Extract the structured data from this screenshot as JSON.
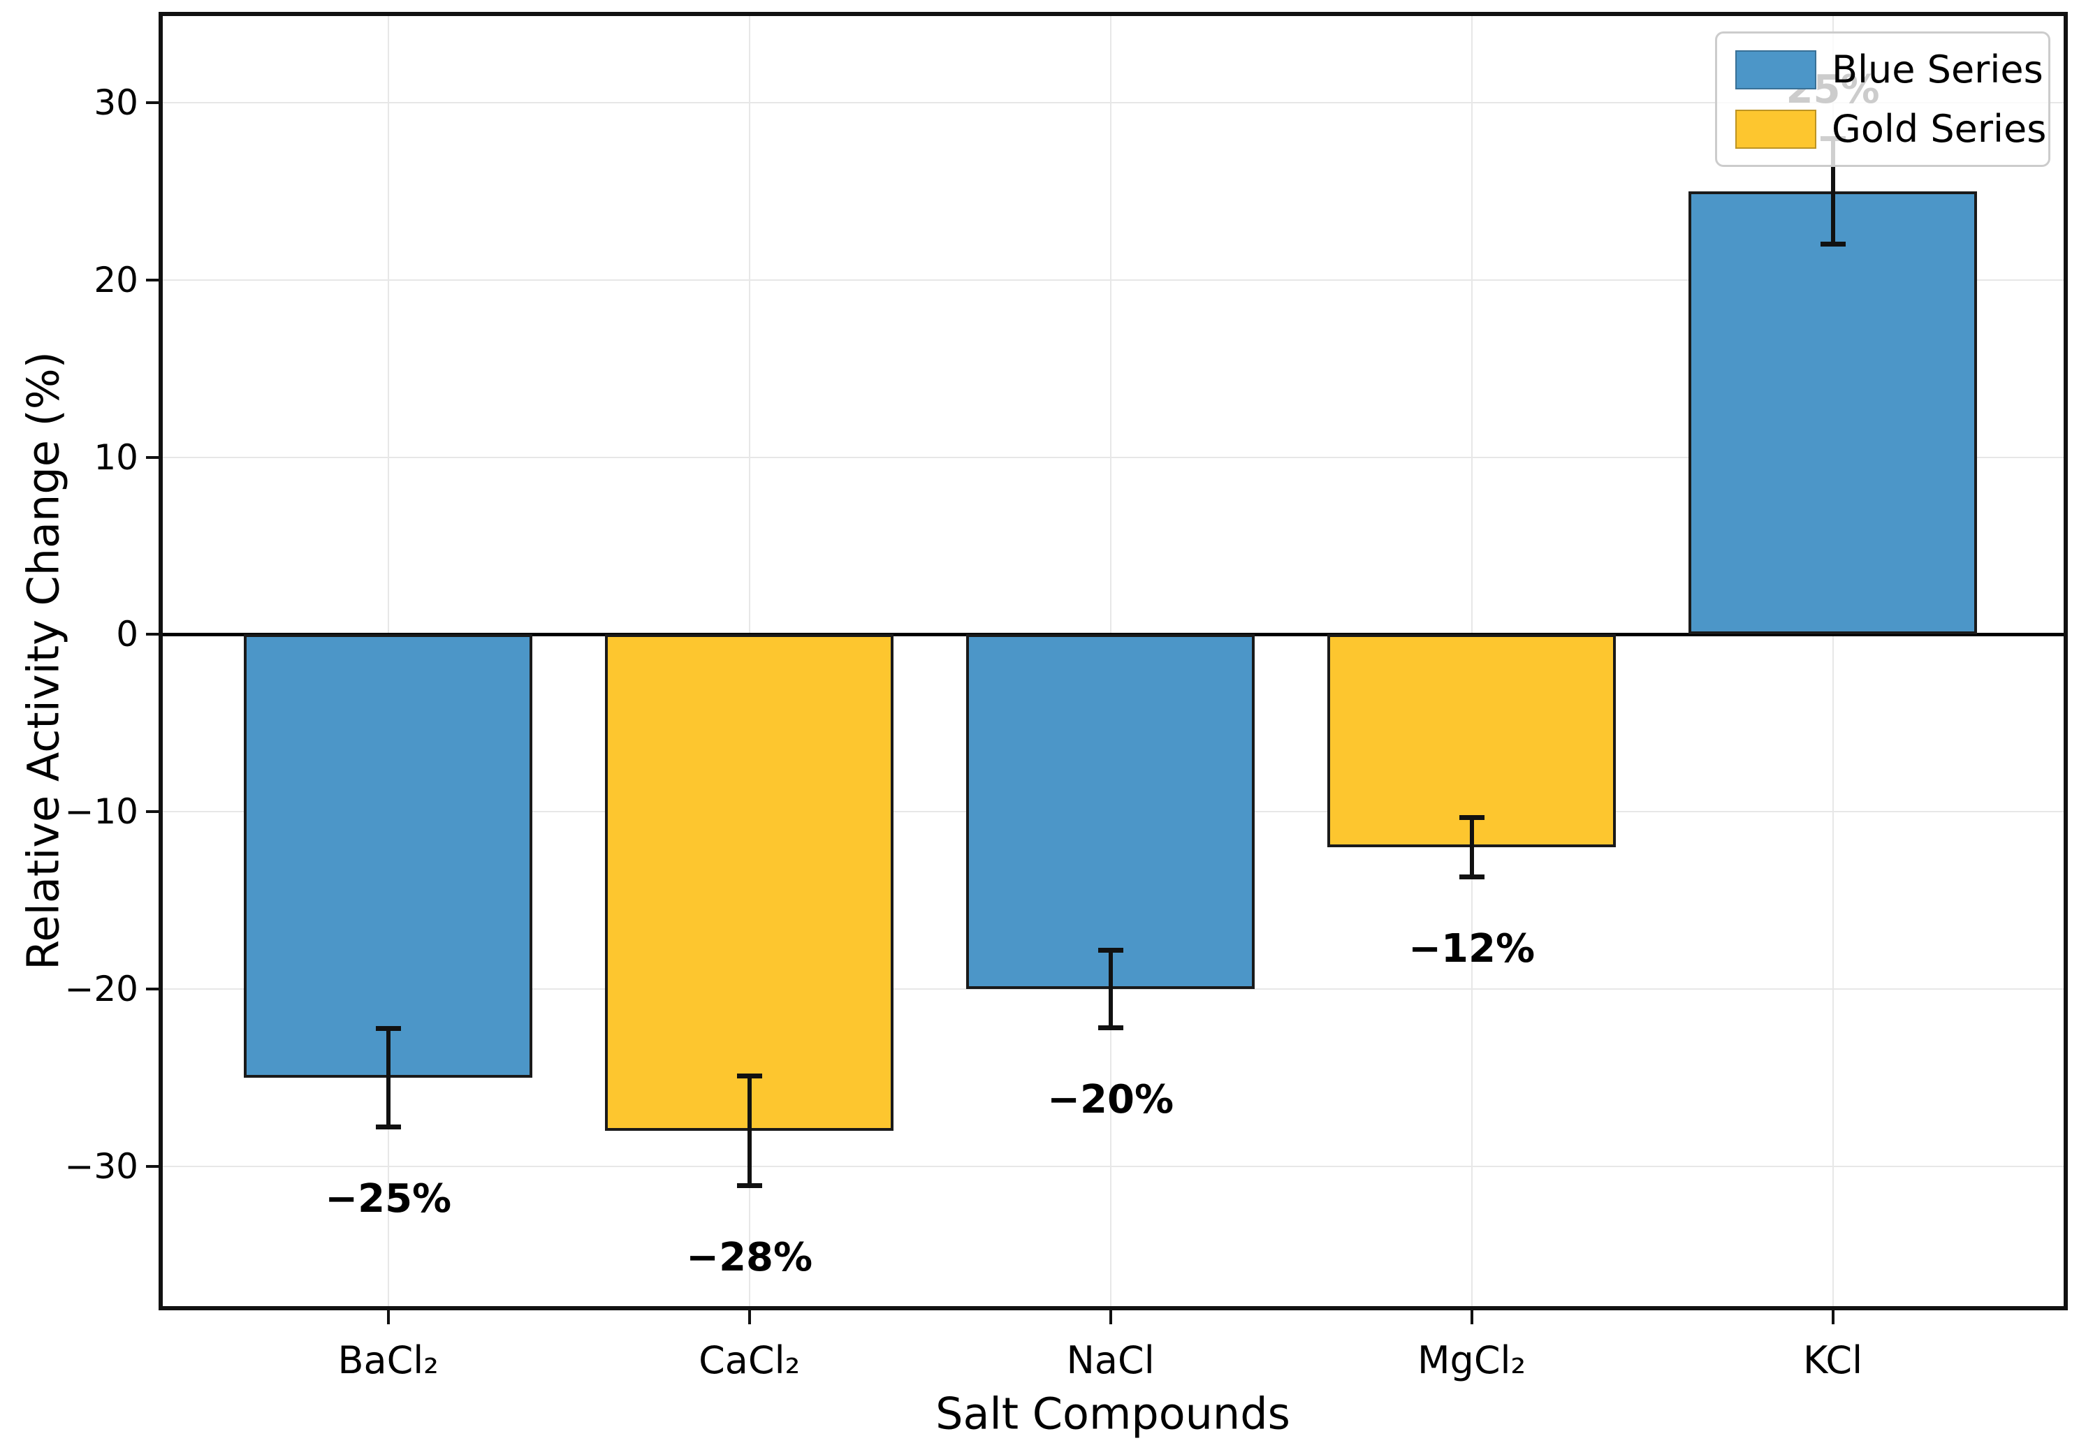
{
  "figure": {
    "background": "#ffffff"
  },
  "chart_data": {
    "type": "bar",
    "title": "",
    "xlabel": "Salt Compounds",
    "ylabel": "Relative Activity Change (%)",
    "categories": [
      "BaCl₂",
      "CaCl₂",
      "NaCl",
      "MgCl₂",
      "KCl"
    ],
    "values": [
      -25,
      -28,
      -20,
      -12,
      25
    ],
    "errors": [
      2.8,
      3.1,
      2.2,
      1.7,
      3.0
    ],
    "bar_labels": [
      "−25%",
      "−28%",
      "−20%",
      "−12%",
      "25%"
    ],
    "bar_colors": [
      "#4C96C8",
      "#FDC62F",
      "#4C96C8",
      "#FDC62F",
      "#4C96C8"
    ],
    "bar_edge_color": "#1a1a1a",
    "series": [
      {
        "name": "Blue Series",
        "color": "#4C96C8",
        "category_indices": [
          0,
          2,
          4
        ],
        "values": [
          -25,
          -20,
          25
        ]
      },
      {
        "name": "Gold Series",
        "color": "#FDC62F",
        "category_indices": [
          1,
          3
        ],
        "values": [
          -28,
          -12
        ]
      }
    ],
    "yticks": [
      30,
      20,
      10,
      0,
      -10,
      -20,
      -30
    ],
    "ytick_labels": [
      "30",
      "20",
      "10",
      "0",
      "−10",
      "−20",
      "−30"
    ],
    "ylim": [
      -38,
      35
    ],
    "xlim": [
      -0.63,
      4.645
    ],
    "bar_width": 0.8,
    "grid": true,
    "zero_line": true,
    "legend": {
      "position": "upper right",
      "entries": [
        {
          "label": "Blue Series",
          "color": "#4C96C8"
        },
        {
          "label": "Gold Series",
          "color": "#FDC62F"
        }
      ]
    }
  }
}
